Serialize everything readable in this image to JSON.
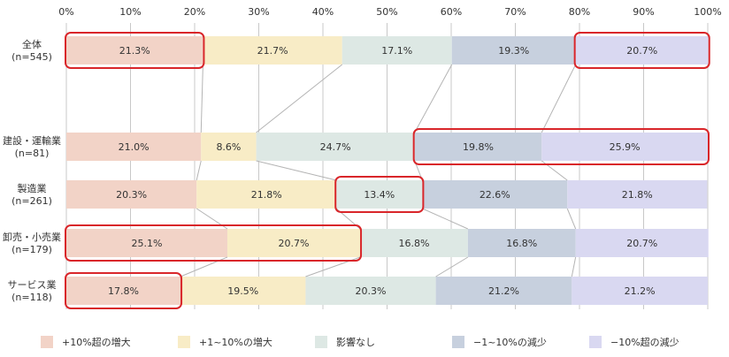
{
  "chart_data": {
    "type": "bar",
    "orientation": "horizontal",
    "stacked": "percent",
    "xlim": [
      0,
      100
    ],
    "x_ticks": [
      "0%",
      "10%",
      "20%",
      "30%",
      "40%",
      "50%",
      "60%",
      "70%",
      "80%",
      "90%",
      "100%"
    ],
    "grid": true,
    "legend_position": "bottom",
    "categories": [
      {
        "line1": "全体",
        "line2": "(n=545)"
      },
      {
        "line1": "建設・運輸業",
        "line2": "(n=81)"
      },
      {
        "line1": "製造業",
        "line2": "(n=261)"
      },
      {
        "line1": "卸売・小売業",
        "line2": "(n=179)"
      },
      {
        "line1": "サービス業",
        "line2": "(n=118)"
      }
    ],
    "series": [
      {
        "name": "+10%超の増大",
        "color": "#f2d3c7",
        "values": [
          21.3,
          21.0,
          20.3,
          25.1,
          17.8
        ],
        "labels": [
          "21.3%",
          "21.0%",
          "20.3%",
          "25.1%",
          "17.8%"
        ]
      },
      {
        "name": "+1~10%の増大",
        "color": "#f8ecc6",
        "values": [
          21.7,
          8.6,
          21.8,
          20.7,
          19.5
        ],
        "labels": [
          "21.7%",
          "8.6%",
          "21.8%",
          "20.7%",
          "19.5%"
        ]
      },
      {
        "name": "影響なし",
        "color": "#dde8e4",
        "values": [
          17.1,
          24.7,
          13.4,
          16.8,
          20.3
        ],
        "labels": [
          "17.1%",
          "24.7%",
          "13.4%",
          "16.8%",
          "20.3%"
        ]
      },
      {
        "name": "−1~10%の減少",
        "color": "#c7d0de",
        "values": [
          19.3,
          19.8,
          22.6,
          16.8,
          21.2
        ],
        "labels": [
          "19.3%",
          "19.8%",
          "22.6%",
          "16.8%",
          "21.2%"
        ]
      },
      {
        "name": "−10%超の減少",
        "color": "#d9d8f1",
        "values": [
          20.7,
          25.9,
          21.8,
          20.7,
          21.2
        ],
        "labels": [
          "20.7%",
          "25.9%",
          "21.8%",
          "20.7%",
          "21.2%"
        ]
      }
    ],
    "highlights": [
      {
        "row": 0,
        "from_series": 0,
        "to_series": 0
      },
      {
        "row": 0,
        "from_series": 4,
        "to_series": 4
      },
      {
        "row": 1,
        "from_series": 3,
        "to_series": 4
      },
      {
        "row": 2,
        "from_series": 2,
        "to_series": 2
      },
      {
        "row": 3,
        "from_series": 0,
        "to_series": 1
      },
      {
        "row": 4,
        "from_series": 0,
        "to_series": 0
      }
    ],
    "colors": {
      "grid": "#c8c8c8",
      "connector": "#b4b4b4",
      "highlight": "#d9262a",
      "text": "#333333"
    }
  }
}
